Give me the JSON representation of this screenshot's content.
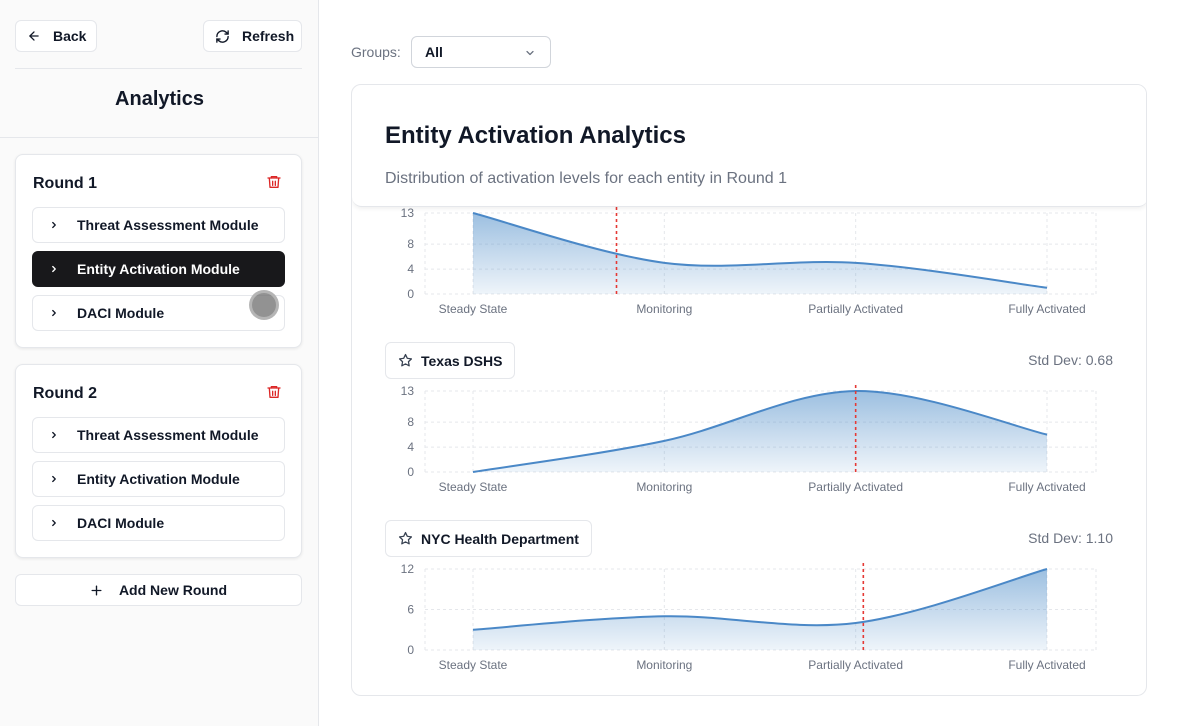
{
  "sidebar": {
    "back_label": "Back",
    "refresh_label": "Refresh",
    "title": "Analytics",
    "add_round_label": "Add New Round",
    "rounds": [
      {
        "title": "Round 1",
        "modules": [
          {
            "label": "Threat Assessment Module",
            "active": false
          },
          {
            "label": "Entity Activation Module",
            "active": true
          },
          {
            "label": "DACI Module",
            "active": false
          }
        ]
      },
      {
        "title": "Round 2",
        "modules": [
          {
            "label": "Threat Assessment Module",
            "active": false
          },
          {
            "label": "Entity Activation Module",
            "active": false
          },
          {
            "label": "DACI Module",
            "active": false
          }
        ]
      }
    ]
  },
  "filters": {
    "groups_label": "Groups:",
    "groups_value": "All"
  },
  "panel": {
    "title": "Entity Activation Analytics",
    "description": "Distribution of activation levels for each entity in Round 1"
  },
  "colors": {
    "line": "#4a88c7",
    "fill_top": "#5b95cc",
    "mean_line": "#e53935",
    "danger": "#dc2626",
    "active_bg": "#18181b"
  },
  "icons": {
    "back": "arrow-left-icon",
    "refresh": "refresh-icon",
    "trash": "trash-icon",
    "chevron": "chevron-right-icon",
    "plus": "plus-icon",
    "star": "star-icon",
    "select": "chevron-down-icon"
  },
  "chart_data": [
    {
      "type": "area",
      "entity": "",
      "std_dev_label": "",
      "categories": [
        "Steady State",
        "Monitoring",
        "Partially Activated",
        "Fully Activated"
      ],
      "values": [
        13,
        5,
        5,
        1
      ],
      "mean_category_index": 0.75,
      "yticks": [
        0,
        4,
        8,
        13
      ],
      "ylim": [
        0,
        13
      ],
      "grid": true
    },
    {
      "type": "area",
      "entity": "Texas DSHS",
      "std_dev_label": "Std Dev: 0.68",
      "categories": [
        "Steady State",
        "Monitoring",
        "Partially Activated",
        "Fully Activated"
      ],
      "values": [
        0,
        5,
        13,
        6
      ],
      "mean_category_index": 2.0,
      "yticks": [
        0,
        4,
        8,
        13
      ],
      "ylim": [
        0,
        13
      ],
      "grid": true
    },
    {
      "type": "area",
      "entity": "NYC Health Department",
      "std_dev_label": "Std Dev: 1.10",
      "categories": [
        "Steady State",
        "Monitoring",
        "Partially Activated",
        "Fully Activated"
      ],
      "values": [
        3,
        5,
        4,
        12
      ],
      "mean_category_index": 2.04,
      "yticks": [
        0,
        6,
        12
      ],
      "ylim": [
        0,
        12
      ],
      "grid": true
    }
  ]
}
